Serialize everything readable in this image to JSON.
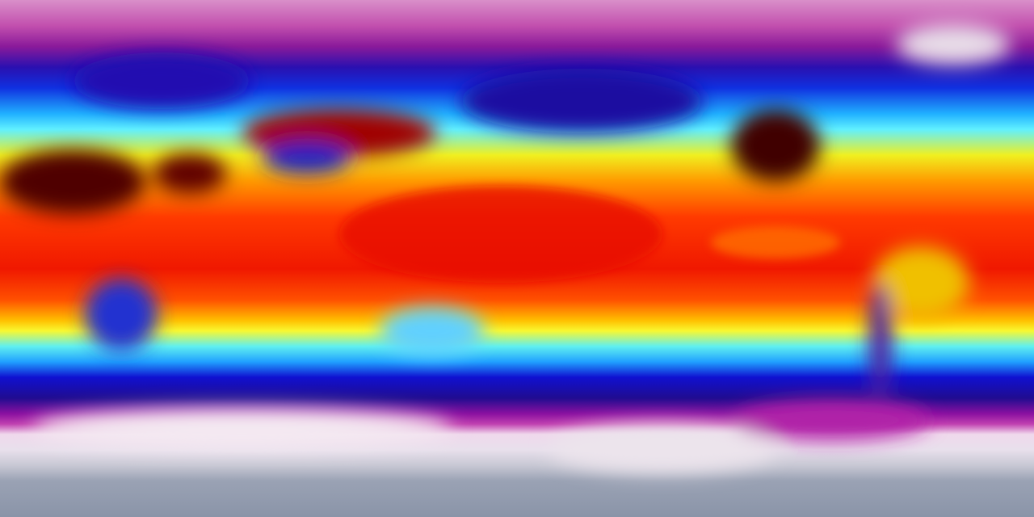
{
  "map": {
    "projection": "equirectangular",
    "colormap": [
      "#d98fc9",
      "#2a10b0",
      "#20b0ff",
      "#f0f020",
      "#ff3a00",
      "#200000",
      "#e8e0ec",
      "#8a94a8"
    ]
  }
}
